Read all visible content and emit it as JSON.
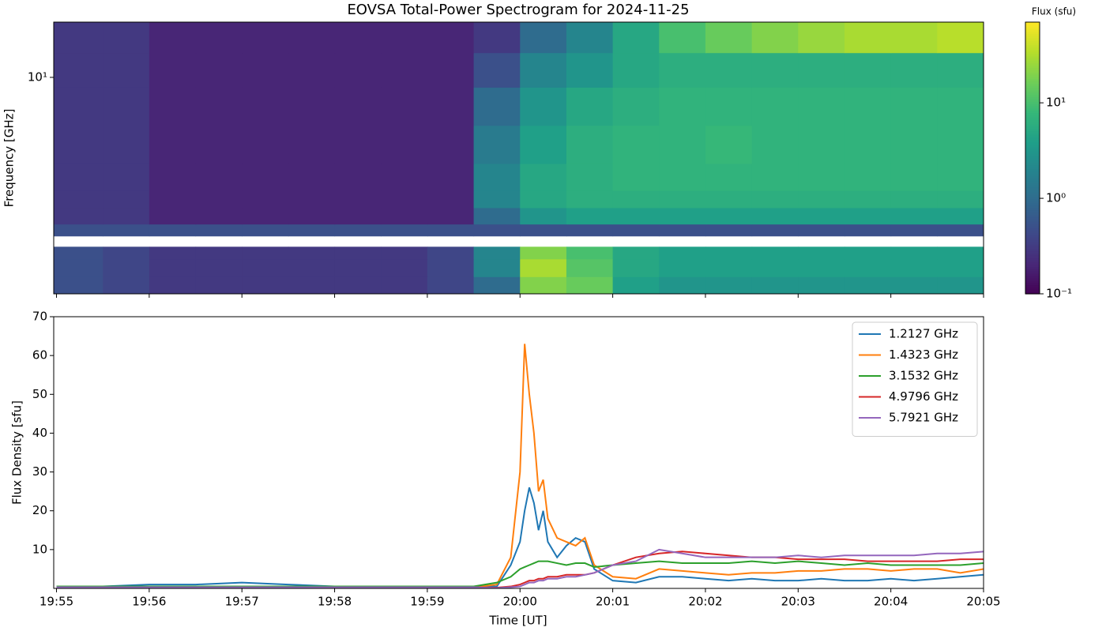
{
  "chart_data": [
    {
      "type": "heatmap",
      "title": "EOVSA Total-Power Spectrogram for 2024-11-25",
      "ylabel": "Frequency [GHz]",
      "x": [
        1194.97,
        1195.5,
        1196,
        1196.5,
        1197,
        1197.5,
        1198,
        1198.5,
        1199,
        1199.5,
        1200,
        1200.5,
        1201,
        1201.5,
        1202,
        1202.5,
        1203,
        1203.5,
        1204,
        1204.5,
        1205
      ],
      "y": [
        1.0,
        1.2,
        1.45,
        1.65,
        1.85,
        2.1,
        2.5,
        3.0,
        4.0,
        6.0,
        9.0,
        13.0,
        18.0
      ],
      "values": [
        [
          0.5,
          0.4,
          0.3,
          0.3,
          0.3,
          0.3,
          0.3,
          0.3,
          0.4,
          1,
          20,
          15,
          4,
          3,
          3,
          3,
          3,
          3,
          3,
          3
        ],
        [
          0.5,
          0.4,
          0.3,
          0.3,
          0.3,
          0.3,
          0.3,
          0.3,
          0.4,
          2,
          30,
          12,
          5,
          4,
          4,
          4,
          4,
          4,
          4,
          4
        ],
        [
          0.5,
          0.4,
          0.3,
          0.3,
          0.3,
          0.3,
          0.3,
          0.3,
          0.4,
          2,
          20,
          10,
          5,
          4,
          4,
          4,
          4,
          4,
          4,
          4
        ],
        [
          null,
          null,
          null,
          null,
          null,
          null,
          null,
          null,
          null,
          null,
          null,
          null,
          null,
          null,
          null,
          null,
          null,
          null,
          null,
          null
        ],
        [
          0.5,
          0.5,
          0.5,
          0.5,
          0.5,
          0.5,
          0.5,
          0.5,
          0.5,
          0.5,
          0.5,
          0.5,
          0.5,
          0.5,
          0.5,
          0.5,
          0.5,
          0.5,
          0.5,
          0.5
        ],
        [
          0.3,
          0.3,
          0.2,
          0.2,
          0.2,
          0.2,
          0.2,
          0.2,
          0.2,
          1,
          3,
          4,
          4,
          4,
          4,
          4,
          4,
          4,
          4,
          4
        ],
        [
          0.3,
          0.3,
          0.2,
          0.2,
          0.2,
          0.2,
          0.2,
          0.2,
          0.2,
          2,
          5,
          6,
          6,
          6,
          6,
          6,
          6,
          6,
          6,
          6
        ],
        [
          0.3,
          0.3,
          0.2,
          0.2,
          0.2,
          0.2,
          0.2,
          0.2,
          0.2,
          2,
          5,
          6,
          7,
          7,
          7,
          7,
          7,
          7,
          7,
          7
        ],
        [
          0.3,
          0.3,
          0.2,
          0.2,
          0.2,
          0.2,
          0.2,
          0.2,
          0.2,
          1.5,
          4,
          6,
          7,
          7,
          8,
          7,
          7,
          7,
          7,
          7
        ],
        [
          0.3,
          0.3,
          0.2,
          0.2,
          0.2,
          0.2,
          0.2,
          0.2,
          0.2,
          1,
          3,
          5,
          6,
          7,
          7,
          7,
          7,
          7,
          7,
          7
        ],
        [
          0.3,
          0.3,
          0.2,
          0.2,
          0.2,
          0.2,
          0.2,
          0.2,
          0.2,
          0.5,
          2,
          3,
          5,
          6,
          6,
          6,
          6,
          6,
          6,
          6
        ],
        [
          0.3,
          0.3,
          0.2,
          0.2,
          0.2,
          0.2,
          0.2,
          0.2,
          0.2,
          0.3,
          1,
          2,
          5,
          10,
          15,
          20,
          25,
          30,
          30,
          35
        ]
      ],
      "xlim": [
        1194.97,
        1205
      ],
      "xticks": [
        1195,
        1196,
        1197,
        1198,
        1199,
        1200,
        1201,
        1202,
        1203,
        1204,
        1205
      ],
      "ylim": [
        1,
        18
      ],
      "yscale": "log",
      "yticks": [
        {
          "value": 10,
          "label": "10¹"
        }
      ],
      "colormap": "viridis",
      "colorbar": {
        "label": "Flux (sfu)",
        "lim": [
          0.1,
          70
        ],
        "scale": "log",
        "ticks": [
          {
            "value": 0.1,
            "label": "10⁻¹"
          },
          {
            "value": 1,
            "label": "10⁰"
          },
          {
            "value": 10,
            "label": "10¹"
          }
        ]
      }
    },
    {
      "type": "line",
      "xlabel": "Time [UT]",
      "ylabel": "Flux Density [sfu]",
      "legend": "upper right",
      "x": [
        1195,
        1195.5,
        1196,
        1196.5,
        1197,
        1197.5,
        1198,
        1198.5,
        1199,
        1199.5,
        1199.75,
        1199.9,
        1200,
        1200.05,
        1200.1,
        1200.15,
        1200.2,
        1200.25,
        1200.3,
        1200.4,
        1200.5,
        1200.6,
        1200.7,
        1200.8,
        1201,
        1201.25,
        1201.5,
        1201.75,
        1202,
        1202.25,
        1202.5,
        1202.75,
        1203,
        1203.25,
        1203.5,
        1203.75,
        1204,
        1204.25,
        1204.5,
        1204.75,
        1205
      ],
      "series": [
        {
          "name": "1.2127 GHz",
          "color": "#1f77b4",
          "values": [
            0.5,
            0.5,
            1,
            1,
            1.5,
            1,
            0.5,
            0.5,
            0.5,
            0.5,
            0.5,
            6,
            12,
            20,
            26,
            22,
            15,
            20,
            12,
            8,
            11,
            13,
            12,
            5,
            2,
            1.5,
            3,
            3,
            2.5,
            2,
            2.5,
            2,
            2,
            2.5,
            2,
            2,
            2.5,
            2,
            2.5,
            3,
            3.5
          ]
        },
        {
          "name": "1.4323 GHz",
          "color": "#ff7f0e",
          "values": [
            0.3,
            0.3,
            0.5,
            0.5,
            0.5,
            0.5,
            0.3,
            0.3,
            0.3,
            0.3,
            1,
            8,
            30,
            63,
            50,
            40,
            25,
            28,
            18,
            13,
            12,
            11,
            13,
            6,
            3,
            2.5,
            5,
            4.5,
            4,
            3.5,
            4,
            4,
            4.5,
            4.5,
            5,
            5,
            4.5,
            5,
            5,
            4,
            5
          ]
        },
        {
          "name": "3.1532 GHz",
          "color": "#2ca02c",
          "values": [
            0.5,
            0.5,
            0.5,
            0.5,
            0.5,
            0.5,
            0.5,
            0.5,
            0.5,
            0.5,
            1.5,
            3,
            5,
            5.5,
            6,
            6.5,
            7,
            7,
            7,
            6.5,
            6,
            6.5,
            6.5,
            5.5,
            6,
            6.5,
            7,
            6.5,
            6.5,
            6.5,
            7,
            6.5,
            7,
            6.5,
            6,
            6.5,
            6,
            6,
            6,
            6,
            6.5
          ]
        },
        {
          "name": "4.9796 GHz",
          "color": "#d62728",
          "values": [
            0.3,
            0.3,
            0.3,
            0.3,
            0.3,
            0.3,
            0.3,
            0.3,
            0.3,
            0.3,
            0.2,
            0.5,
            1,
            1.5,
            2,
            2,
            2.5,
            2.5,
            3,
            3,
            3.5,
            3.5,
            3.5,
            4,
            6,
            8,
            9,
            9.5,
            9,
            8.5,
            8,
            8,
            7.5,
            7.5,
            7.5,
            7,
            7,
            7,
            7,
            7.5,
            7.5
          ]
        },
        {
          "name": "5.7921 GHz",
          "color": "#9467bd",
          "values": [
            0.3,
            0.3,
            0.3,
            0.3,
            0.3,
            0.3,
            0.3,
            0.3,
            0.3,
            0.3,
            0.1,
            0.3,
            0.5,
            1,
            1.5,
            1.5,
            2,
            2,
            2.5,
            2.5,
            3,
            3,
            3.5,
            4,
            6,
            7,
            10,
            9,
            8,
            8,
            8,
            8,
            8.5,
            8,
            8.5,
            8.5,
            8.5,
            8.5,
            9,
            9,
            9.5
          ]
        }
      ],
      "xlim": [
        1194.97,
        1205
      ],
      "xticks": [
        {
          "value": 1195,
          "label": "19:55"
        },
        {
          "value": 1196,
          "label": "19:56"
        },
        {
          "value": 1197,
          "label": "19:57"
        },
        {
          "value": 1198,
          "label": "19:58"
        },
        {
          "value": 1199,
          "label": "19:59"
        },
        {
          "value": 1200,
          "label": "20:00"
        },
        {
          "value": 1201,
          "label": "20:01"
        },
        {
          "value": 1202,
          "label": "20:02"
        },
        {
          "value": 1203,
          "label": "20:03"
        },
        {
          "value": 1204,
          "label": "20:04"
        },
        {
          "value": 1205,
          "label": "20:05"
        }
      ],
      "ylim": [
        0,
        70
      ],
      "yticks": [
        10,
        20,
        30,
        40,
        50,
        60,
        70
      ]
    }
  ]
}
